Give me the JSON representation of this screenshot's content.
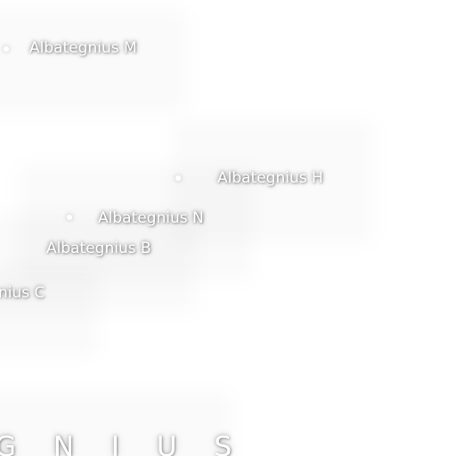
{
  "map": {
    "labels": {
      "m": "Albategnius M",
      "h": "Albategnius H",
      "n": "Albategnius N",
      "b": "Albategnius B",
      "c": "nius C"
    },
    "region_label": "G N I U S",
    "colors": {
      "background": "#ffffff",
      "label_text": "#ffffff",
      "label_halo": "#000000"
    }
  }
}
